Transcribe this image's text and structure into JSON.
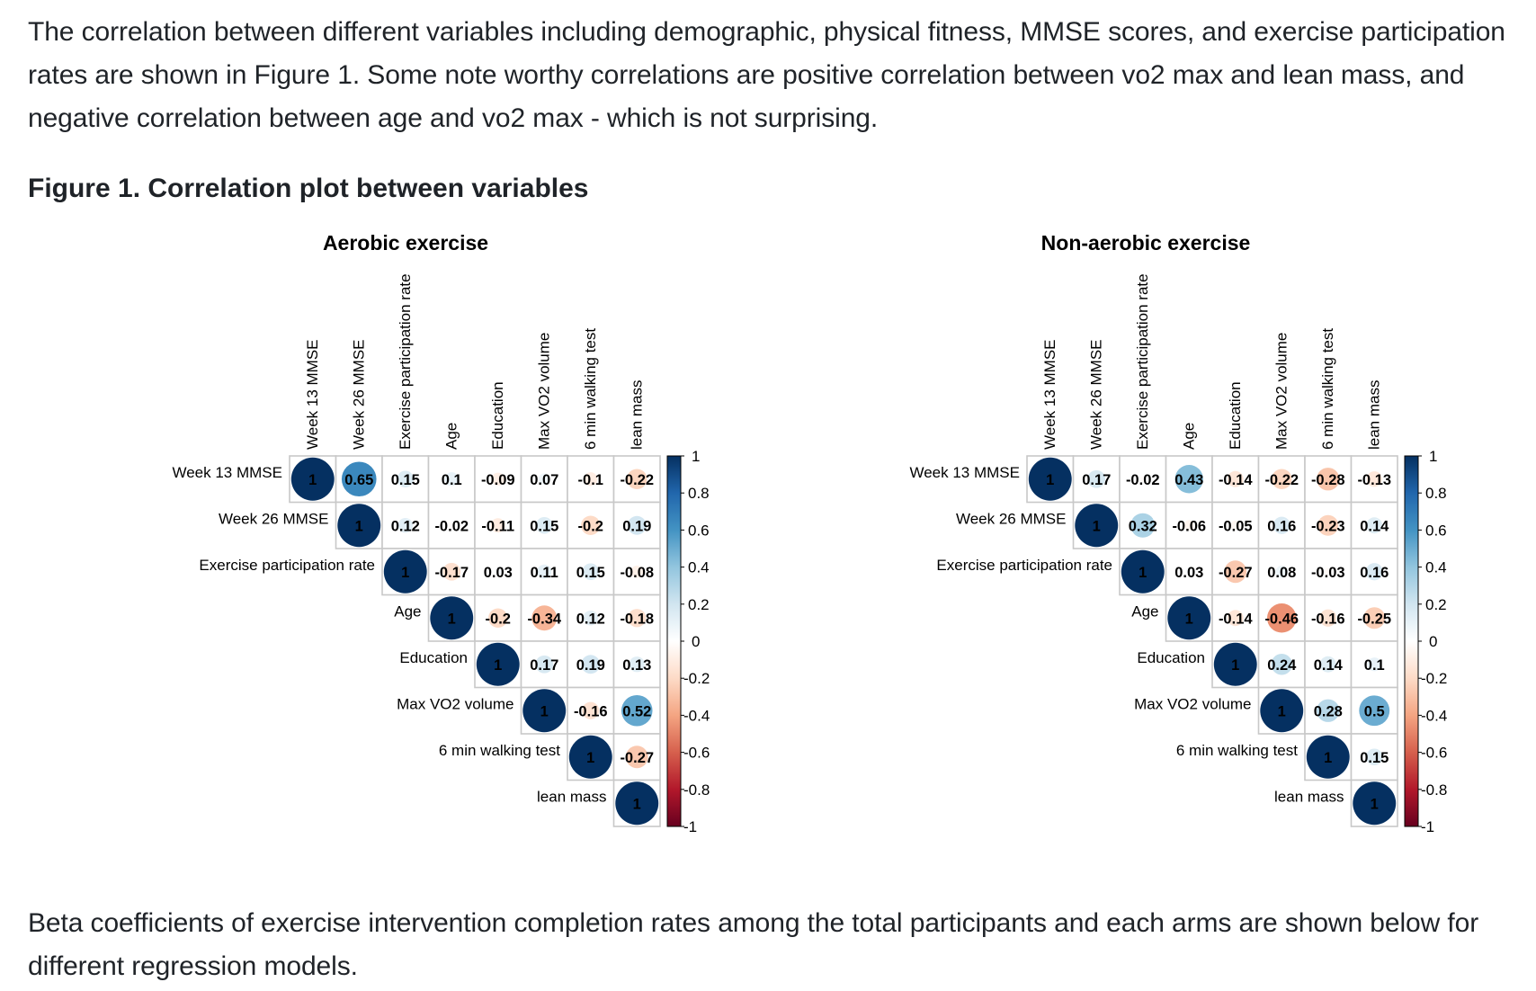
{
  "text": {
    "intro": "The correlation between different variables including demographic, physical fitness, MMSE scores, and exercise participation rates are shown in Figure 1. Some note worthy correlations are positive correlation between vo2 max and lean mass, and negative correlation between age and vo2 max - which is not surprising.",
    "figure_heading": "Figure 1. Correlation plot between variables",
    "outro": "Beta coefficients of exercise intervention completion rates among the total participants and each arms are shown below for different regression models."
  },
  "chart_data": [
    {
      "type": "heatmap",
      "style": "corrplot-circle-upper",
      "title": "Aerobic exercise",
      "variables": [
        "Week 13 MMSE",
        "Week 26 MMSE",
        "Exercise participation rate",
        "Age",
        "Education",
        "Max VO2 volume",
        "6 min walking test",
        "lean mass"
      ],
      "matrix_upper": [
        [
          1,
          0.65,
          0.15,
          0.1,
          -0.09,
          0.07,
          -0.1,
          -0.22
        ],
        [
          1,
          0.12,
          -0.02,
          -0.11,
          0.15,
          -0.2,
          0.19
        ],
        [
          1,
          -0.17,
          0.03,
          0.11,
          0.15,
          -0.08
        ],
        [
          1,
          -0.2,
          -0.34,
          0.12,
          -0.18
        ],
        [
          1,
          0.17,
          0.19,
          0.13
        ],
        [
          1,
          -0.16,
          0.52
        ],
        [
          1,
          -0.27
        ],
        [
          1
        ]
      ],
      "colorbar": {
        "range": [
          -1,
          1
        ],
        "ticks": [
          "1",
          "0.8",
          "0.6",
          "0.4",
          "0.2",
          "0",
          "-0.2",
          "-0.4",
          "-0.6",
          "-0.8",
          "-1"
        ],
        "palette": [
          "#67001F",
          "#B2182B",
          "#D6604D",
          "#F4A582",
          "#FDDBC7",
          "#FFFFFF",
          "#D1E5F0",
          "#92C5DE",
          "#4393C3",
          "#2166AC",
          "#053061"
        ]
      }
    },
    {
      "type": "heatmap",
      "style": "corrplot-circle-upper",
      "title": "Non-aerobic exercise",
      "variables": [
        "Week 13 MMSE",
        "Week 26 MMSE",
        "Exercise participation rate",
        "Age",
        "Education",
        "Max VO2 volume",
        "6 min walking test",
        "lean mass"
      ],
      "matrix_upper": [
        [
          1,
          0.17,
          -0.02,
          0.43,
          -0.14,
          -0.22,
          -0.28,
          -0.13
        ],
        [
          1,
          0.32,
          -0.06,
          -0.05,
          0.16,
          -0.23,
          0.14
        ],
        [
          1,
          0.03,
          -0.27,
          0.08,
          -0.03,
          0.16
        ],
        [
          1,
          -0.14,
          -0.46,
          -0.16,
          -0.25
        ],
        [
          1,
          0.24,
          0.14,
          0.1
        ],
        [
          1,
          0.28,
          0.5
        ],
        [
          1,
          0.15
        ],
        [
          1
        ]
      ],
      "colorbar": {
        "range": [
          -1,
          1
        ],
        "ticks": [
          "1",
          "0.8",
          "0.6",
          "0.4",
          "0.2",
          "0",
          "-0.2",
          "-0.4",
          "-0.6",
          "-0.8",
          "-1"
        ],
        "palette": [
          "#67001F",
          "#B2182B",
          "#D6604D",
          "#F4A582",
          "#FDDBC7",
          "#FFFFFF",
          "#D1E5F0",
          "#92C5DE",
          "#4393C3",
          "#2166AC",
          "#053061"
        ]
      }
    }
  ]
}
